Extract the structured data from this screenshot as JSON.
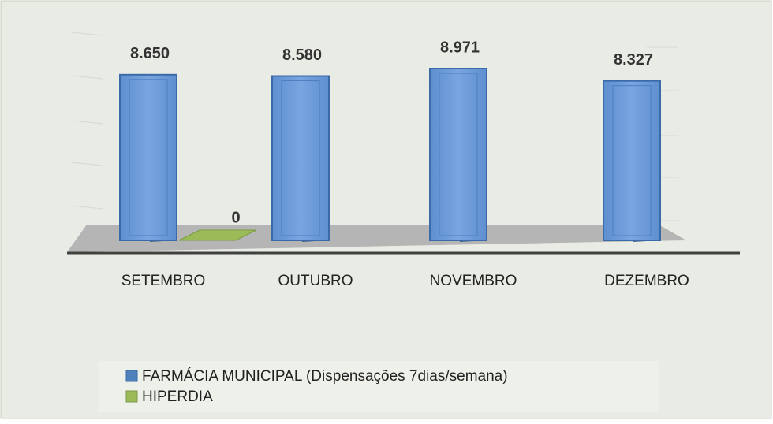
{
  "chart_data": {
    "type": "bar3d",
    "categories": [
      "SETEMBRO",
      "OUTUBRO",
      "NOVEMBRO",
      "DEZEMBRO"
    ],
    "series": [
      {
        "name": "FARMÁCIA MUNICIPAL (Dispensações 7dias/semana)",
        "color": "#4f81bd",
        "values": [
          8650,
          8580,
          8971,
          8327
        ],
        "value_labels": [
          "8.650",
          "8.580",
          "8.971",
          "8.327"
        ]
      },
      {
        "name": "HIPERDIA",
        "color": "#9bbb59",
        "values": [
          0,
          null,
          null,
          null
        ]
      }
    ],
    "ylim": [
      0,
      10000
    ],
    "grid": true,
    "legend": "bottom"
  }
}
